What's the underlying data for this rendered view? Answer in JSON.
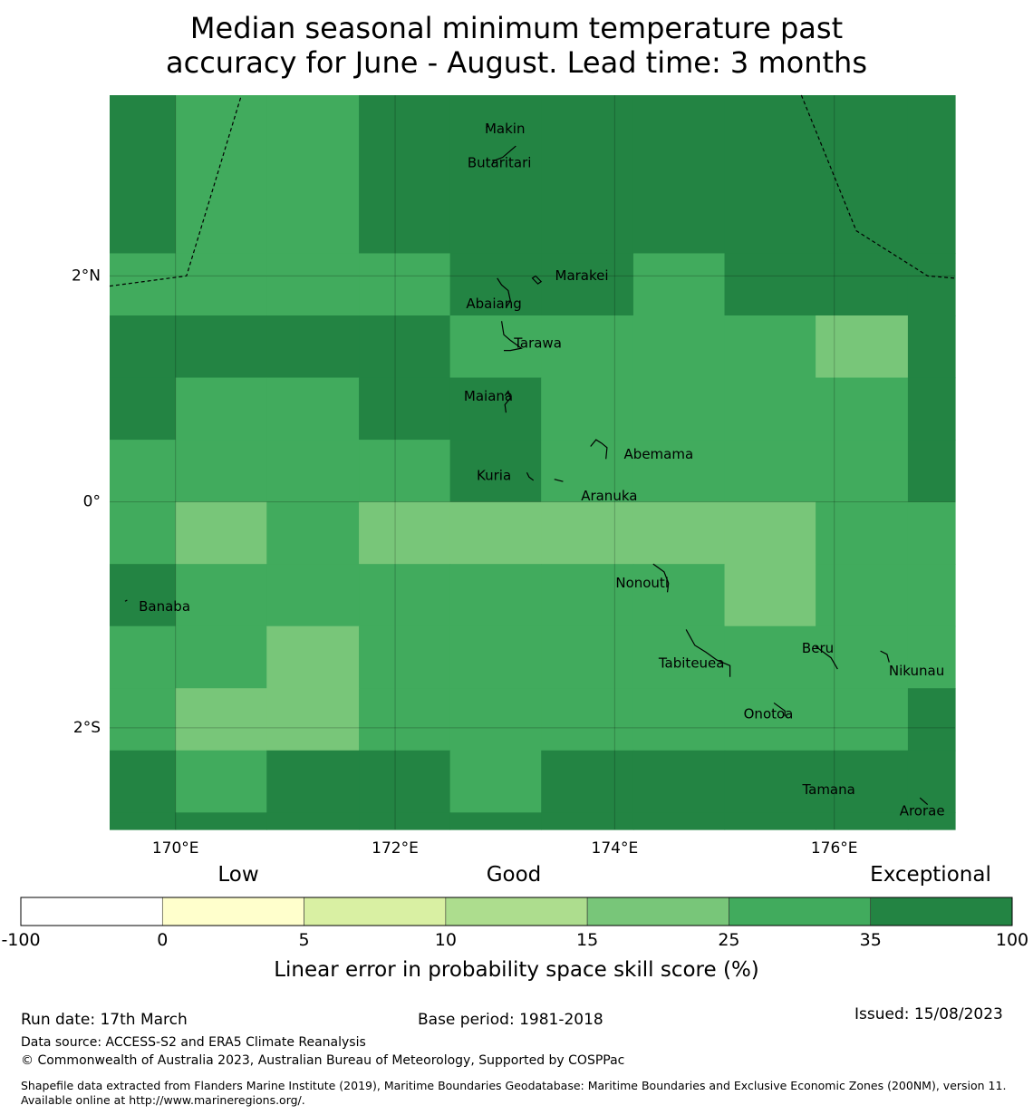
{
  "title": {
    "line1": "Median seasonal minimum temperature past",
    "line2": "accuracy for June - August. Lead time: 3 months"
  },
  "map": {
    "lon_range": [
      169.4,
      177.1
    ],
    "lat_range": [
      -2.9,
      3.6
    ],
    "x_ticks": [
      {
        "value": 170,
        "label": "170°E"
      },
      {
        "value": 172,
        "label": "172°E"
      },
      {
        "value": 174,
        "label": "174°E"
      },
      {
        "value": 176,
        "label": "176°E"
      }
    ],
    "y_ticks": [
      {
        "value": 2,
        "label": "2°N"
      },
      {
        "value": 0,
        "label": "0°"
      },
      {
        "value": -2,
        "label": "2°S"
      }
    ],
    "grid_columns_lon": [
      169.4,
      170.0,
      170.83,
      171.67,
      172.5,
      173.33,
      174.17,
      175.0,
      175.83,
      176.67,
      177.1
    ],
    "grid_rows_lat": [
      3.6,
      2.2,
      1.65,
      1.1,
      0.55,
      0.0,
      -0.55,
      -1.1,
      -1.65,
      -2.2,
      -2.75,
      -2.9
    ],
    "skill_categories": [
      [
        6,
        5,
        5,
        6,
        6,
        6,
        6,
        6,
        6,
        6
      ],
      [
        5,
        5,
        5,
        5,
        6,
        6,
        5,
        6,
        6,
        6
      ],
      [
        6,
        6,
        6,
        6,
        5,
        5,
        5,
        5,
        4,
        6
      ],
      [
        6,
        5,
        5,
        6,
        6,
        5,
        5,
        5,
        5,
        6
      ],
      [
        5,
        5,
        5,
        5,
        6,
        5,
        5,
        5,
        5,
        6
      ],
      [
        5,
        4,
        5,
        4,
        4,
        4,
        4,
        4,
        5,
        5
      ],
      [
        6,
        5,
        5,
        5,
        5,
        5,
        5,
        4,
        5,
        5
      ],
      [
        5,
        5,
        4,
        5,
        5,
        5,
        5,
        5,
        5,
        5
      ],
      [
        5,
        4,
        4,
        5,
        5,
        5,
        5,
        5,
        5,
        6
      ],
      [
        6,
        5,
        6,
        6,
        5,
        6,
        6,
        6,
        6,
        6
      ],
      [
        6,
        6,
        6,
        6,
        6,
        6,
        6,
        6,
        6,
        6
      ]
    ],
    "places": [
      {
        "name": "Makin",
        "lon": 173.0,
        "lat": 3.3
      },
      {
        "name": "Butaritari",
        "lon": 172.95,
        "lat": 3.0
      },
      {
        "name": "Marakei",
        "lon": 173.7,
        "lat": 2.0
      },
      {
        "name": "Abaiang",
        "lon": 172.9,
        "lat": 1.75
      },
      {
        "name": "Tarawa",
        "lon": 173.3,
        "lat": 1.4
      },
      {
        "name": "Maiana",
        "lon": 172.85,
        "lat": 0.93
      },
      {
        "name": "Abemama",
        "lon": 174.4,
        "lat": 0.42
      },
      {
        "name": "Kuria",
        "lon": 172.9,
        "lat": 0.23
      },
      {
        "name": "Aranuka",
        "lon": 173.95,
        "lat": 0.05
      },
      {
        "name": "Nonouti",
        "lon": 174.25,
        "lat": -0.72
      },
      {
        "name": "Banaba",
        "lon": 169.9,
        "lat": -0.93
      },
      {
        "name": "Beru",
        "lon": 175.85,
        "lat": -1.3
      },
      {
        "name": "Tabiteuea",
        "lon": 174.7,
        "lat": -1.43
      },
      {
        "name": "Nikunau",
        "lon": 176.75,
        "lat": -1.5
      },
      {
        "name": "Onotoa",
        "lon": 175.4,
        "lat": -1.88
      },
      {
        "name": "Tamana",
        "lon": 175.95,
        "lat": -2.55
      },
      {
        "name": "Arorae",
        "lon": 176.8,
        "lat": -2.74
      }
    ],
    "islands": [
      [
        [
          172.85,
          3.33
        ],
        [
          172.83,
          3.31
        ]
      ],
      [
        [
          173.1,
          3.15
        ],
        [
          172.98,
          3.05
        ],
        [
          172.9,
          3.02
        ],
        [
          172.88,
          2.98
        ]
      ],
      [
        [
          173.28,
          2.0
        ],
        [
          173.25,
          1.98
        ],
        [
          173.3,
          1.93
        ],
        [
          173.33,
          1.95
        ],
        [
          173.28,
          2.0
        ]
      ],
      [
        [
          172.93,
          1.98
        ],
        [
          172.97,
          1.92
        ],
        [
          173.03,
          1.87
        ],
        [
          173.05,
          1.78
        ],
        [
          173.01,
          1.72
        ]
      ],
      [
        [
          172.97,
          1.6
        ],
        [
          172.99,
          1.48
        ],
        [
          173.05,
          1.43
        ],
        [
          173.15,
          1.36
        ],
        [
          173.05,
          1.34
        ],
        [
          172.99,
          1.34
        ]
      ],
      [
        [
          173.0,
          0.94
        ],
        [
          173.03,
          0.98
        ],
        [
          173.05,
          0.92
        ],
        [
          173.0,
          0.86
        ],
        [
          173.01,
          0.79
        ]
      ],
      [
        [
          173.78,
          0.49
        ],
        [
          173.83,
          0.55
        ],
        [
          173.88,
          0.52
        ],
        [
          173.93,
          0.48
        ],
        [
          173.92,
          0.38
        ]
      ],
      [
        [
          173.2,
          0.26
        ],
        [
          173.22,
          0.22
        ],
        [
          173.26,
          0.19
        ]
      ],
      [
        [
          173.45,
          0.2
        ],
        [
          173.53,
          0.18
        ]
      ],
      [
        [
          174.35,
          -0.55
        ],
        [
          174.45,
          -0.62
        ],
        [
          174.49,
          -0.72
        ],
        [
          174.48,
          -0.8
        ]
      ],
      [
        [
          169.54,
          -0.88
        ],
        [
          169.56,
          -0.87
        ]
      ],
      [
        [
          174.65,
          -1.13
        ],
        [
          174.73,
          -1.27
        ],
        [
          174.83,
          -1.33
        ],
        [
          174.93,
          -1.4
        ],
        [
          175.05,
          -1.45
        ],
        [
          175.05,
          -1.55
        ]
      ],
      [
        [
          175.83,
          -1.28
        ],
        [
          175.97,
          -1.38
        ],
        [
          176.03,
          -1.48
        ]
      ],
      [
        [
          176.42,
          -1.32
        ],
        [
          176.48,
          -1.35
        ],
        [
          176.5,
          -1.42
        ]
      ],
      [
        [
          175.45,
          -1.78
        ],
        [
          175.55,
          -1.85
        ],
        [
          175.55,
          -1.9
        ]
      ],
      [
        [
          176.78,
          -2.62
        ],
        [
          176.85,
          -2.68
        ]
      ]
    ],
    "boundaries": [
      [
        [
          169.4,
          1.91
        ],
        [
          170.1,
          2.0
        ],
        [
          170.6,
          3.6
        ]
      ],
      [
        [
          175.7,
          3.6
        ],
        [
          176.2,
          2.4
        ],
        [
          176.85,
          2.0
        ],
        [
          177.1,
          1.98
        ]
      ]
    ]
  },
  "legend": {
    "labels": {
      "low": "Low",
      "good": "Good",
      "exceptional": "Exceptional"
    },
    "bins": [
      {
        "from": "-100",
        "color": "#ffffff"
      },
      {
        "from": "0",
        "color": "#ffffcc"
      },
      {
        "from": "5",
        "color": "#d9f0a3"
      },
      {
        "from": "10",
        "color": "#addd8e"
      },
      {
        "from": "15",
        "color": "#78c679"
      },
      {
        "from": "25",
        "color": "#41ab5d"
      },
      {
        "from": "35",
        "color": "#238443"
      }
    ],
    "end_label": "100",
    "axis_label": "Linear error in probability space skill score (%)"
  },
  "footer": {
    "run_date": "Run date: 17th March",
    "base_period": "Base period: 1981-2018",
    "issued": "Issued: 15/08/2023",
    "data_source": "Data source: ACCESS-S2 and ERA5 Climate Reanalysis",
    "copyright": "© Commonwealth of Australia 2023, Australian Bureau of Meteorology, Supported by COSPPac",
    "shapefile": "Shapefile data extracted from Flanders Marine Institute (2019), Maritime Boundaries Geodatabase: Maritime Boundaries and Exclusive Economic Zones (200NM), version 11. Available online at http://www.marineregions.org/."
  }
}
